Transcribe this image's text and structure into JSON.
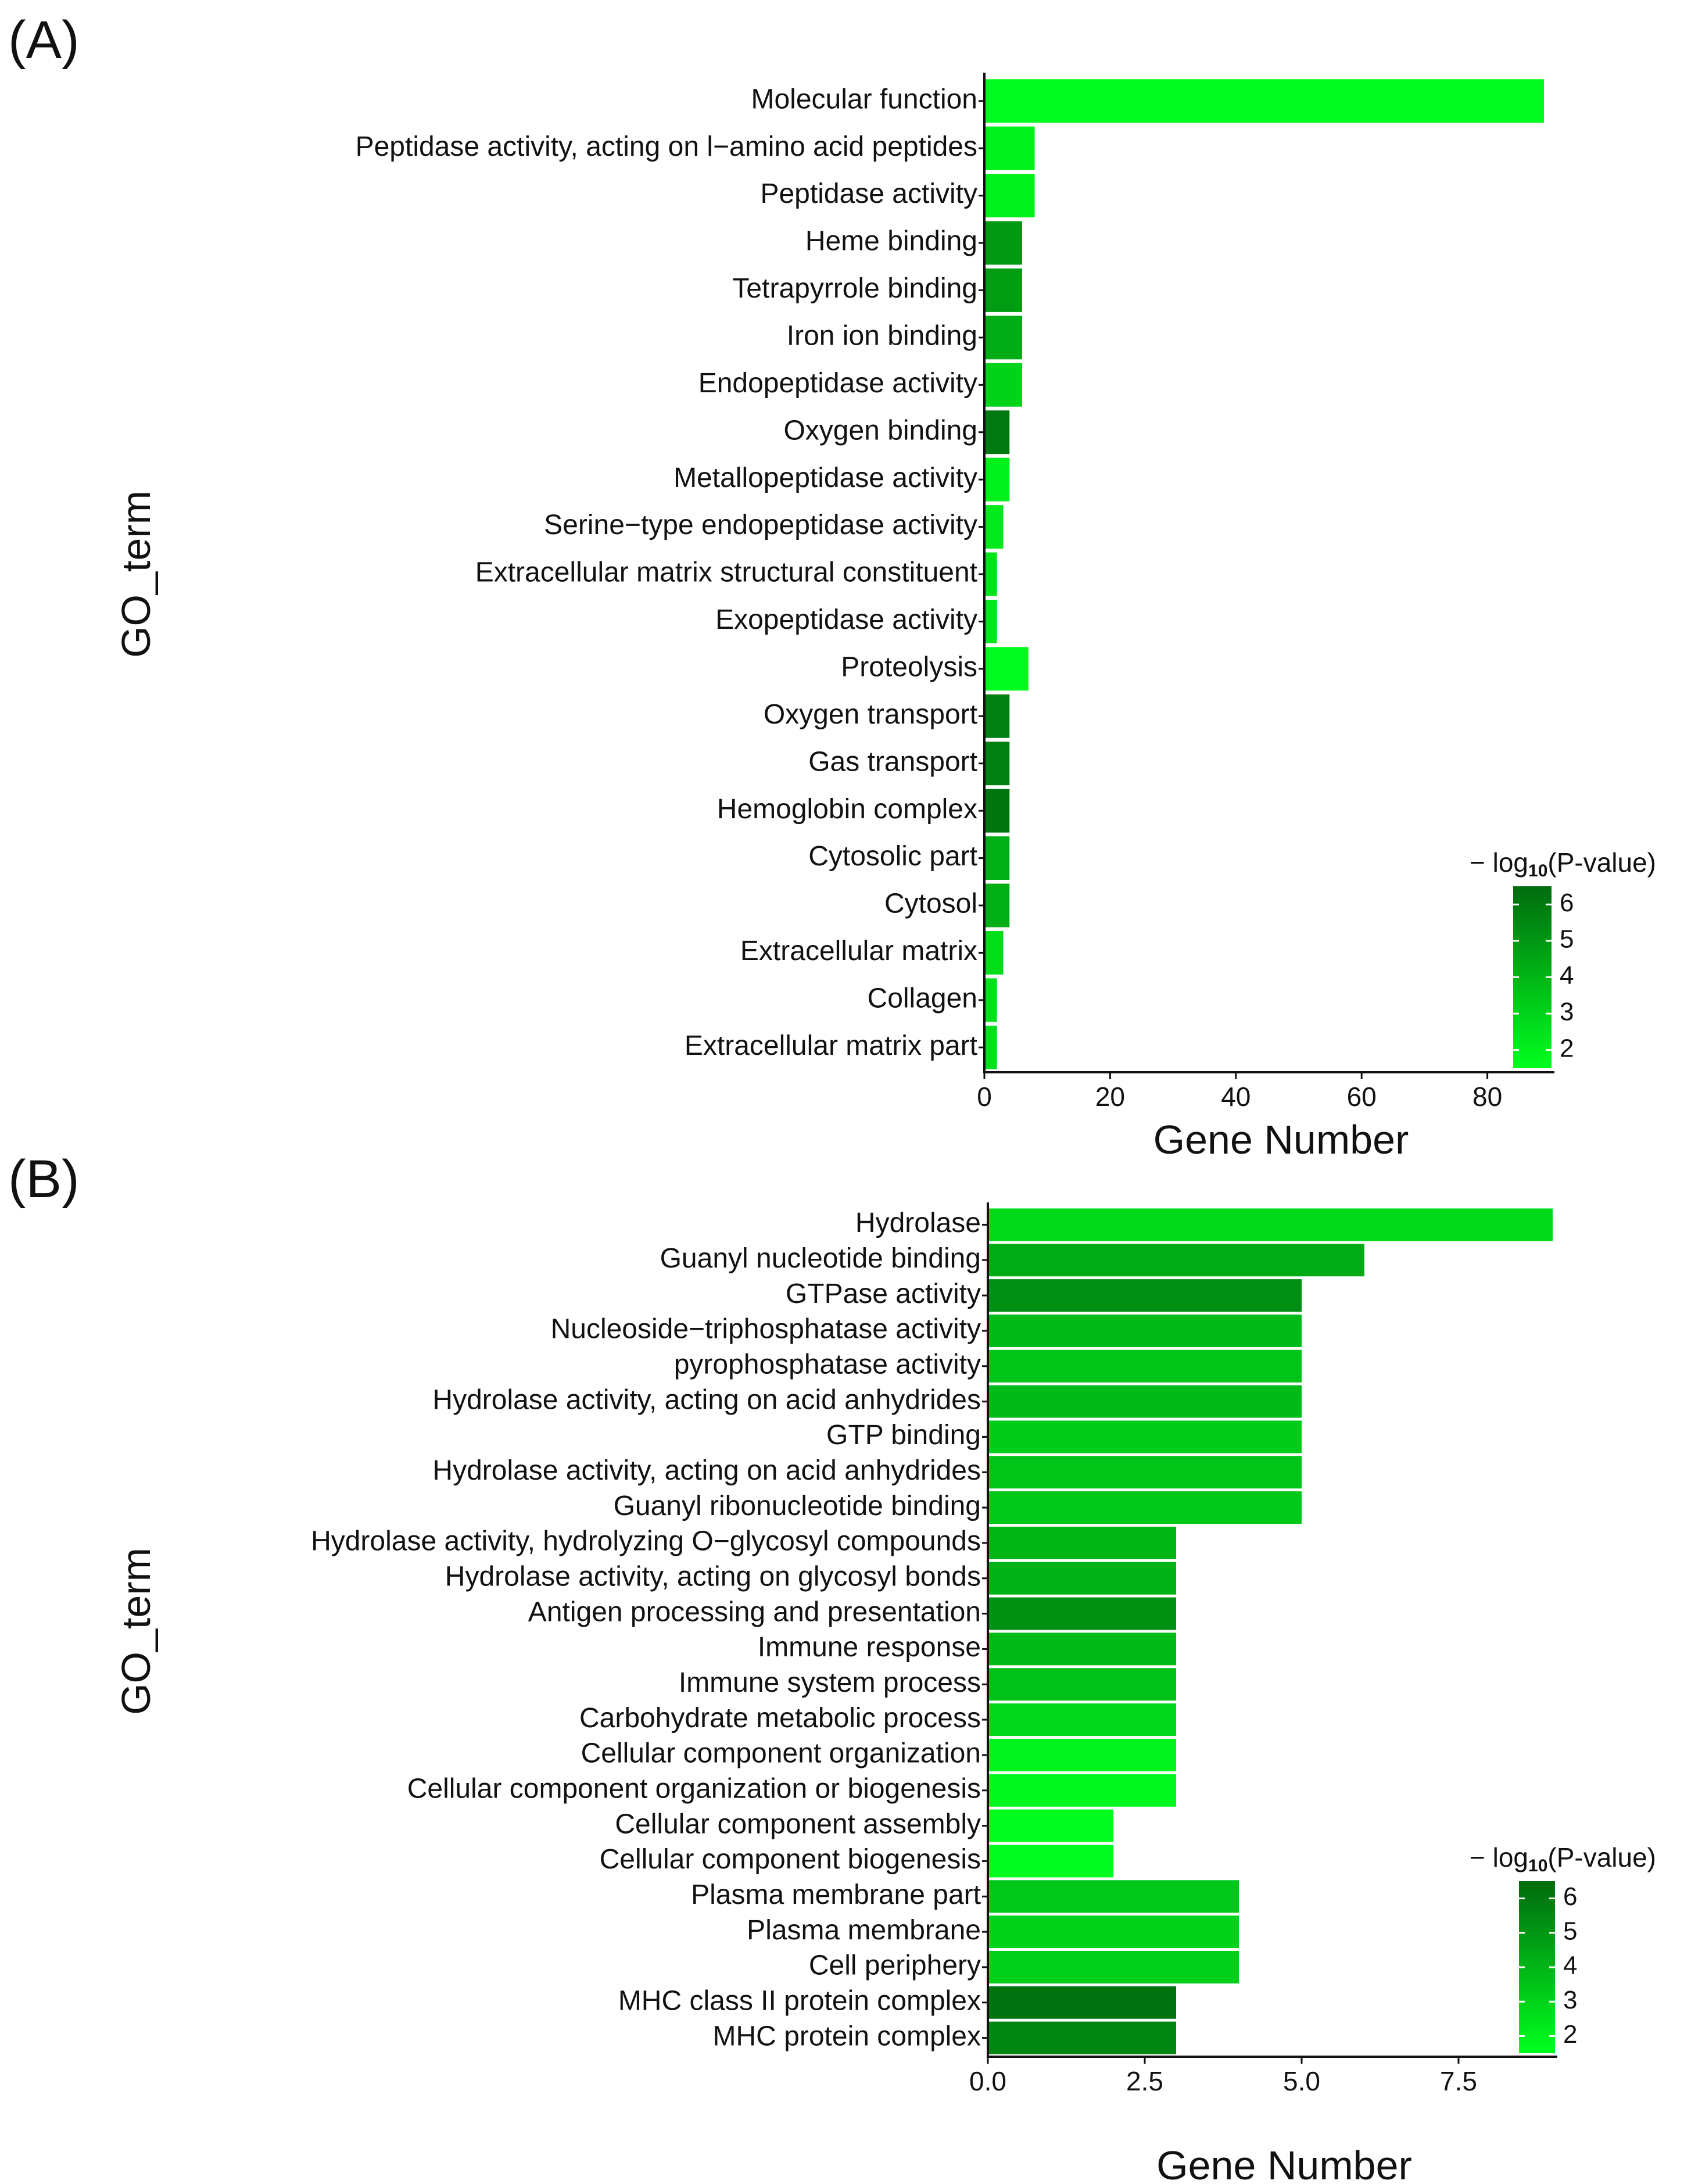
{
  "chart_data": [
    {
      "panel_label": "(A)",
      "type": "bar",
      "orientation": "horizontal",
      "xlabel": "Gene Number",
      "ylabel": "GO_term",
      "xlim": [
        0,
        90
      ],
      "xticks": [
        0,
        20,
        40,
        60,
        80
      ],
      "xtick_labels": [
        "0",
        "20",
        "40",
        "60",
        "80"
      ],
      "legend": {
        "title_prefix": "− log",
        "title_sub": "10",
        "title_suffix": "(P-value)",
        "ticks": [
          2,
          3,
          4,
          5,
          6
        ],
        "range": [
          1.5,
          6.5
        ],
        "low_color": "#00ff1e",
        "high_color": "#006b0e",
        "position": "bottom-right"
      },
      "categories": [
        "Molecular function",
        "Peptidase activity, acting on l−amino acid peptides",
        "Peptidase activity",
        "Heme  binding",
        "Tetrapyrrole binding",
        "Iron ion binding",
        "Endopeptidase activity",
        "Oxygen binding",
        "Metallopeptidase activity",
        "Serine−type endopeptidase activity",
        "Extracellular matrix structural constituent",
        "Exopeptidase activity",
        "Proteolysis",
        "Oxygen transport",
        "Gas transport",
        "Hemoglobin  complex",
        "Cytosolic part",
        "Cytosol",
        "Extracellular matrix",
        "Collagen",
        "Extracellular matrix part"
      ],
      "values": [
        89,
        8,
        8,
        6,
        6,
        6,
        6,
        4,
        4,
        3,
        2,
        2,
        7,
        4,
        4,
        4,
        4,
        4,
        3,
        2,
        2
      ],
      "neg_log10_p": [
        1.6,
        2.0,
        2.0,
        5.0,
        4.8,
        4.3,
        3.0,
        6.0,
        2.0,
        2.2,
        2.4,
        2.3,
        1.6,
        5.8,
        5.8,
        6.2,
        4.2,
        4.2,
        2.6,
        2.5,
        2.5
      ]
    },
    {
      "panel_label": "(B)",
      "type": "bar",
      "orientation": "horizontal",
      "xlabel": "Gene Number",
      "ylabel": "GO_term",
      "xlim": [
        0,
        9
      ],
      "xticks": [
        0,
        2.5,
        5,
        7.5
      ],
      "xtick_labels": [
        "0.0",
        "2.5",
        "5.0",
        "7.5"
      ],
      "legend": {
        "title_prefix": "− log",
        "title_sub": "10",
        "title_suffix": "(P-value)",
        "ticks": [
          2,
          3,
          4,
          5,
          6
        ],
        "range": [
          1.5,
          6.5
        ],
        "low_color": "#00ff1e",
        "high_color": "#006b0e",
        "position": "bottom-right"
      },
      "categories": [
        "Hydrolase",
        "Guanyl nucleotide binding",
        "GTPase activity",
        "Nucleoside−triphosphatase  activity",
        "pyrophosphatase activity",
        "Hydrolase  activity, acting on acid anhydrides",
        "GTP  binding",
        "Hydrolase  activity, acting on acid anhydrides",
        "Guanyl ribonucleotide binding",
        "Hydrolase activity, hydrolyzing O−glycosyl compounds",
        "Hydrolase activity, acting on glycosyl bonds",
        "Antigen processing and presentation",
        "Immune response",
        "Immune system process",
        "Carbohydrate metabolic process",
        "Cellular component organization",
        "Cellular component organization or biogenesis",
        "Cellular component assembly",
        "Cellular component biogenesis",
        "Plasma membrane  part",
        "Plasma membrane",
        "Cell periphery",
        "MHC  class II protein complex",
        "MHC  protein complex"
      ],
      "values": [
        9,
        6,
        5,
        5,
        5,
        5,
        5,
        5,
        5,
        3,
        3,
        3,
        3,
        3,
        3,
        3,
        3,
        2,
        2,
        4,
        4,
        4,
        3,
        3
      ],
      "neg_log10_p": [
        2.8,
        4.3,
        5.3,
        3.8,
        3.5,
        3.8,
        3.2,
        3.5,
        3.4,
        4.0,
        4.1,
        5.2,
        3.8,
        3.6,
        2.9,
        1.9,
        1.8,
        1.6,
        1.6,
        3.4,
        3.0,
        3.1,
        6.3,
        5.6
      ]
    }
  ]
}
